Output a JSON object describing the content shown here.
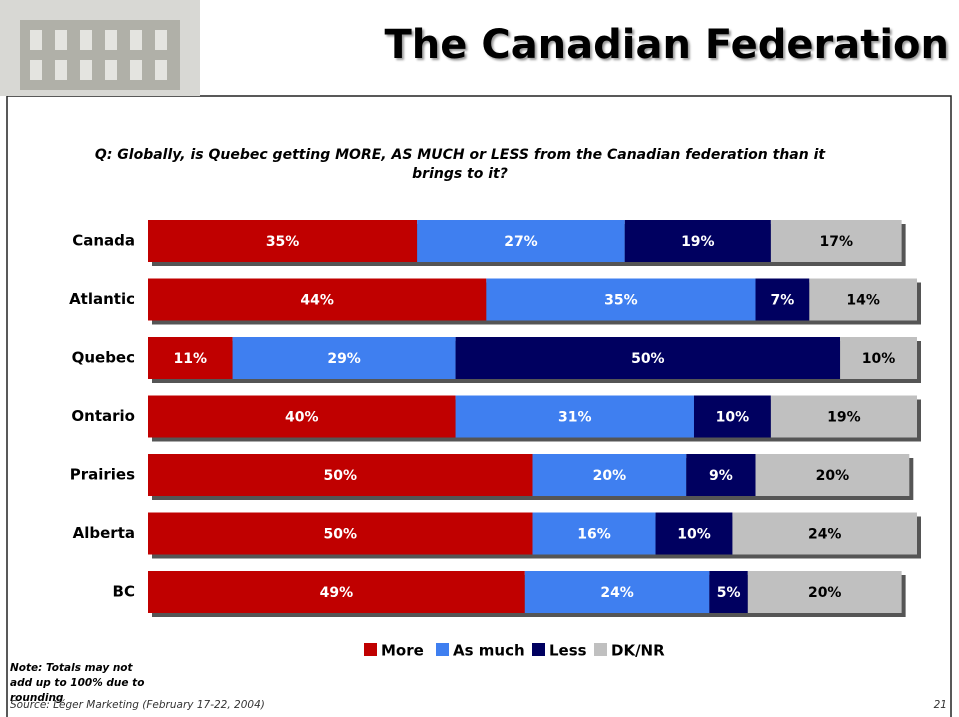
{
  "slide": {
    "title": "The Canadian Federation",
    "question": "Q: Globally, is Quebec getting MORE, AS MUCH or LESS from the Canadian federation than it brings to it?",
    "note": "Note: Totals may not add up to 100% due to rounding",
    "source": "Source: Léger Marketing (February 17-22, 2004)",
    "page": "21"
  },
  "chart_data": {
    "type": "stacked-barh",
    "categories": [
      "Canada",
      "Atlantic",
      "Quebec",
      "Ontario",
      "Prairies",
      "Alberta",
      "BC"
    ],
    "xlim": [
      0,
      100
    ],
    "series": [
      {
        "name": "More",
        "color": "#c00000",
        "values": [
          35,
          44,
          11,
          40,
          50,
          50,
          49
        ],
        "value_labels": [
          "35%",
          "44%",
          "11%",
          "40%",
          "50%",
          "50%",
          "49%"
        ]
      },
      {
        "name": "As much",
        "color": "#3f7ff0",
        "values": [
          27,
          35,
          29,
          31,
          20,
          16,
          24
        ],
        "value_labels": [
          "27%",
          "35%",
          "29%",
          "31%",
          "20%",
          "16%",
          "24%"
        ]
      },
      {
        "name": "Less",
        "color": "#000060",
        "values": [
          19,
          7,
          50,
          10,
          9,
          10,
          5
        ],
        "value_labels": [
          "19%",
          "7%",
          "50%",
          "10%",
          "9%",
          "10%",
          "5%"
        ]
      },
      {
        "name": "DK/NR",
        "color": "#c0c0c0",
        "values": [
          17,
          14,
          10,
          19,
          20,
          24,
          20
        ],
        "value_labels": [
          "17%",
          "14%",
          "10%",
          "19%",
          "20%",
          "24%",
          "20%"
        ]
      }
    ]
  }
}
